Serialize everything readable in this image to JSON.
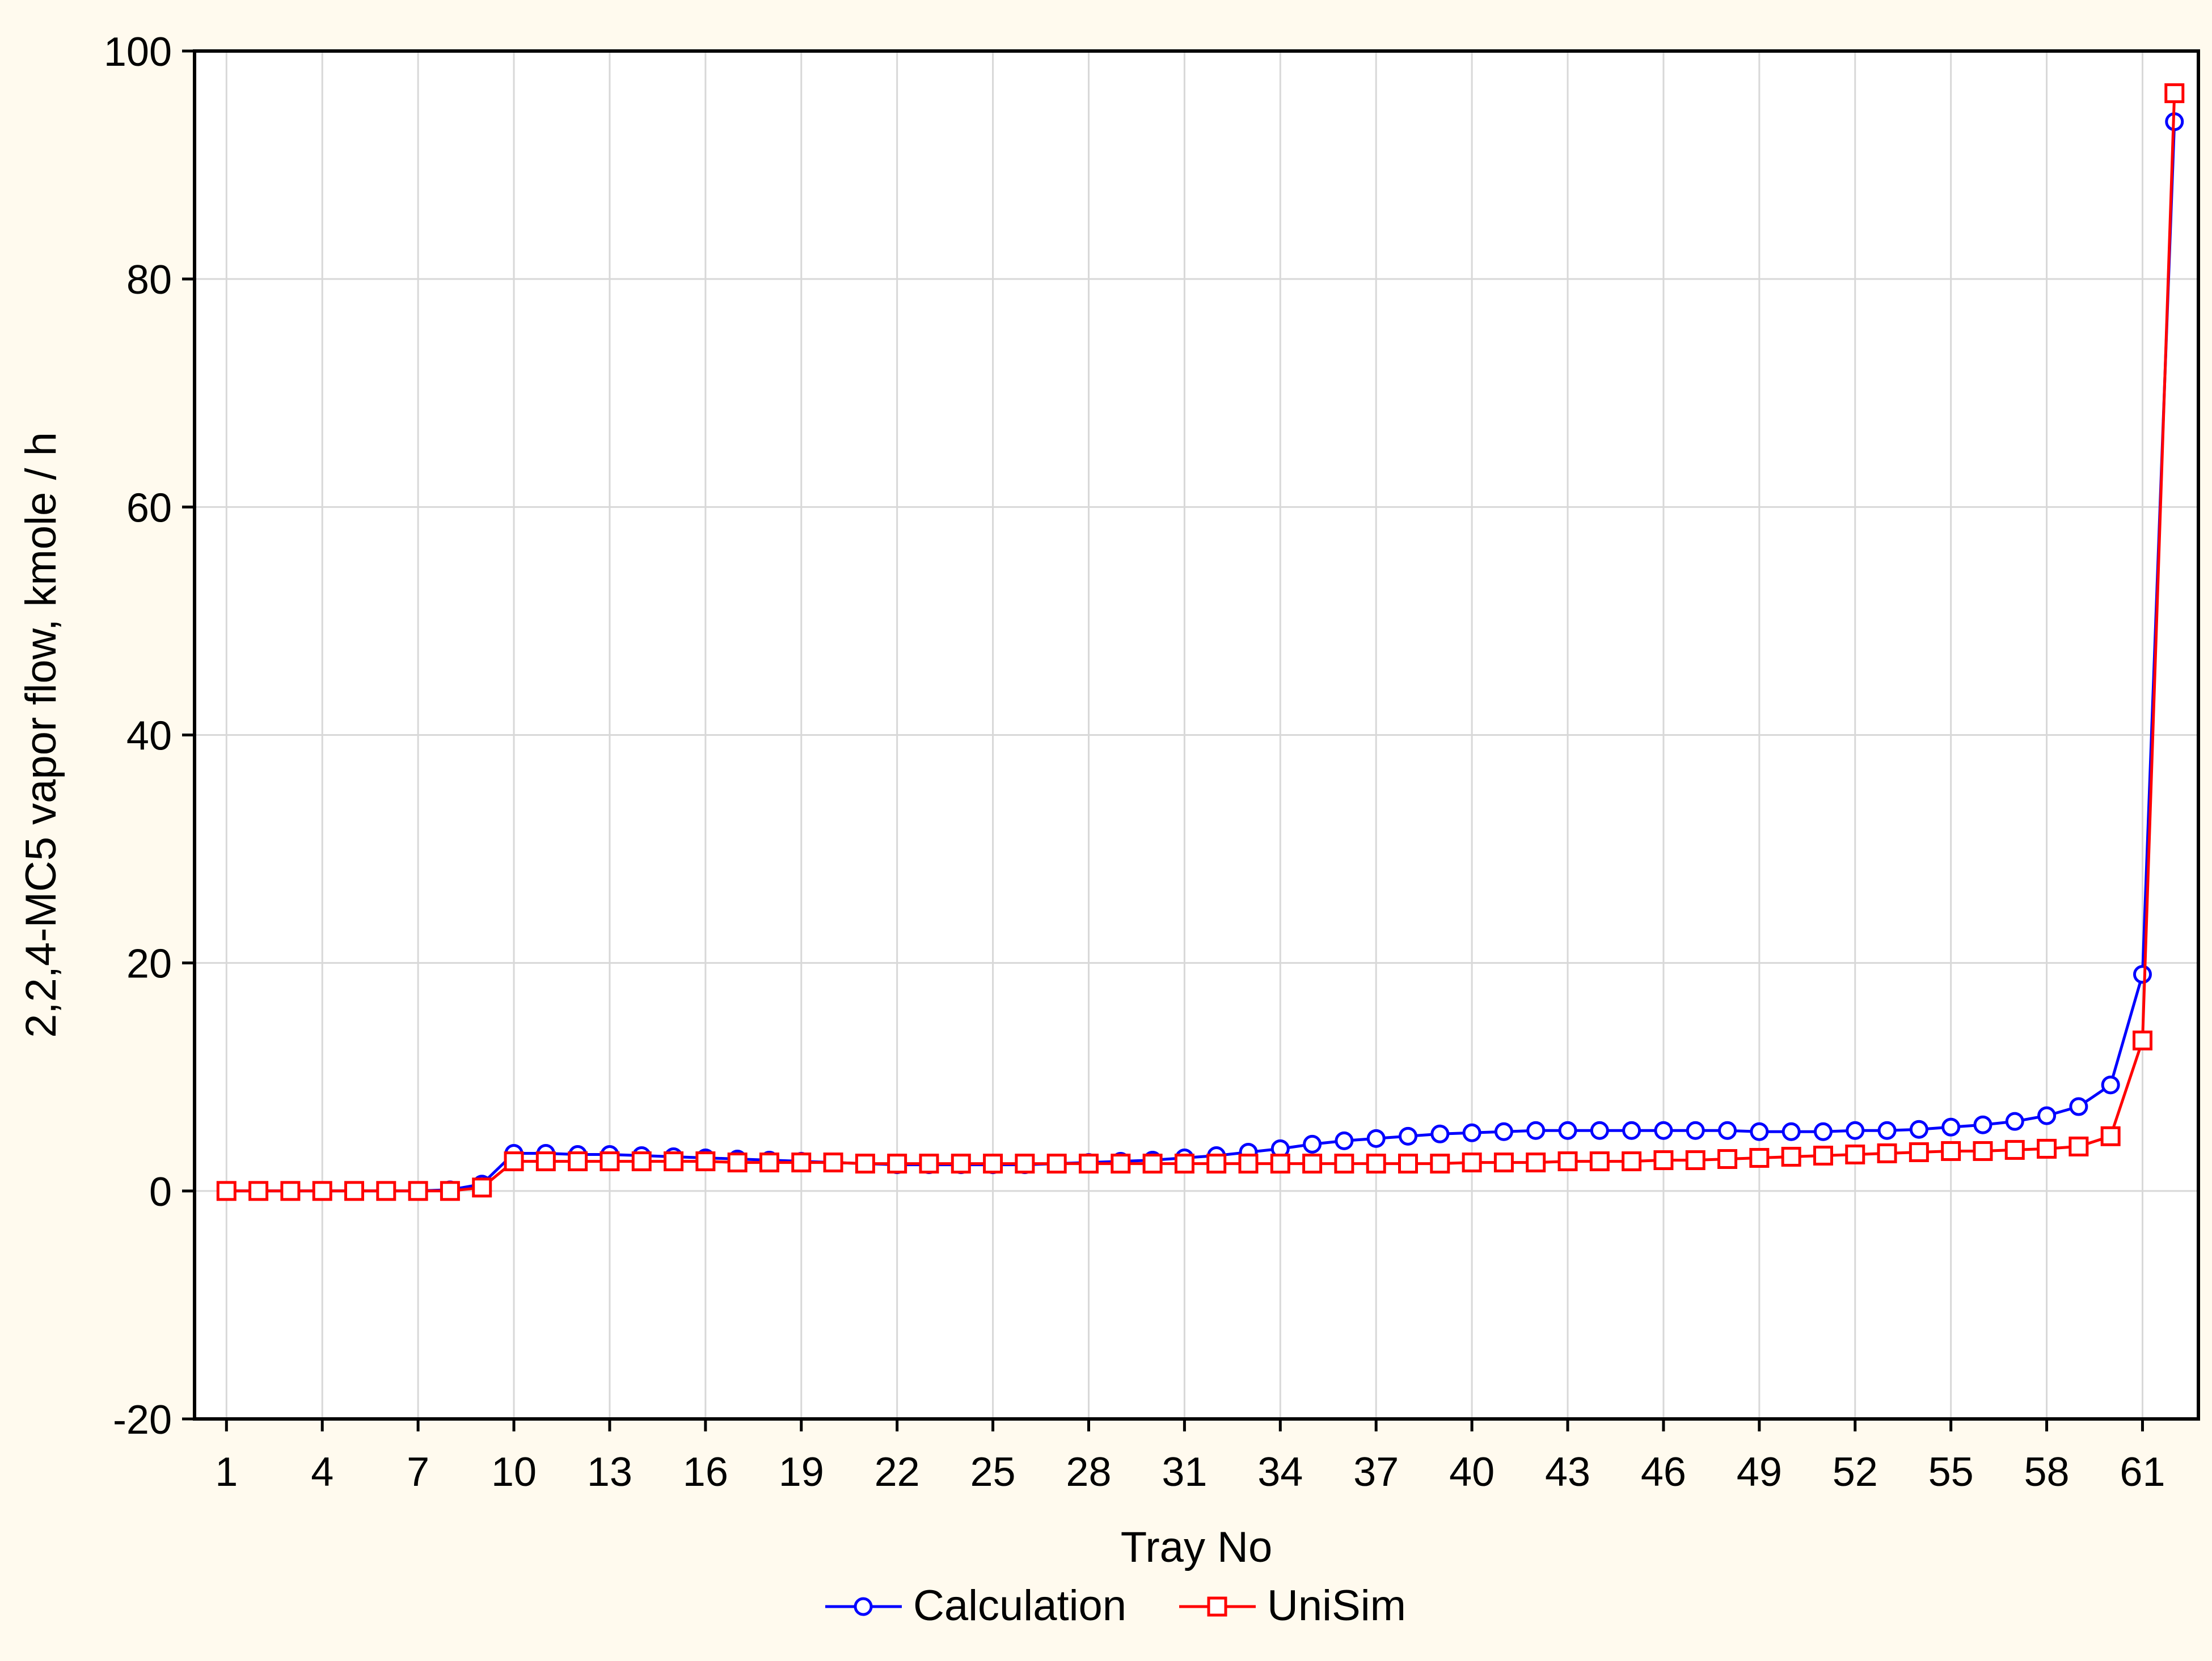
{
  "chart_data": {
    "type": "line",
    "title": "",
    "xlabel": "Tray No",
    "ylabel": "2,2,4-MC5 vapor flow, kmole / h",
    "xlim": [
      0,
      62.75
    ],
    "ylim": [
      -20,
      100
    ],
    "x_ticks": [
      1,
      4,
      7,
      10,
      13,
      16,
      19,
      22,
      25,
      28,
      31,
      34,
      37,
      40,
      43,
      46,
      49,
      52,
      55,
      58,
      61
    ],
    "y_ticks": [
      -20,
      0,
      20,
      40,
      60,
      80,
      100
    ],
    "grid": true,
    "legend_position": "bottom-center",
    "x": [
      1,
      2,
      3,
      4,
      5,
      6,
      7,
      8,
      9,
      10,
      11,
      12,
      13,
      14,
      15,
      16,
      17,
      18,
      19,
      20,
      21,
      22,
      23,
      24,
      25,
      26,
      27,
      28,
      29,
      30,
      31,
      32,
      33,
      34,
      35,
      36,
      37,
      38,
      39,
      40,
      41,
      42,
      43,
      44,
      45,
      46,
      47,
      48,
      49,
      50,
      51,
      52,
      53,
      54,
      55,
      56,
      57,
      58,
      59,
      60,
      61,
      62
    ],
    "series": [
      {
        "name": "Calculation",
        "color": "#0000ff",
        "marker": "circle",
        "values": [
          0,
          0,
          0,
          0,
          0,
          0,
          0,
          0.1,
          0.6,
          3.3,
          3.3,
          3.2,
          3.2,
          3.1,
          3.0,
          2.9,
          2.8,
          2.7,
          2.6,
          2.5,
          2.4,
          2.3,
          2.3,
          2.3,
          2.3,
          2.3,
          2.4,
          2.5,
          2.6,
          2.7,
          2.9,
          3.1,
          3.4,
          3.7,
          4.1,
          4.4,
          4.6,
          4.8,
          5.0,
          5.1,
          5.2,
          5.3,
          5.3,
          5.3,
          5.3,
          5.3,
          5.3,
          5.3,
          5.2,
          5.2,
          5.2,
          5.3,
          5.3,
          5.4,
          5.6,
          5.8,
          6.1,
          6.6,
          7.4,
          9.3,
          19.0,
          93.8
        ]
      },
      {
        "name": "UniSim",
        "color": "#ff0000",
        "marker": "square",
        "values": [
          0,
          0,
          0,
          0,
          0,
          0,
          0,
          0,
          0.3,
          2.6,
          2.6,
          2.6,
          2.6,
          2.6,
          2.6,
          2.6,
          2.5,
          2.5,
          2.5,
          2.5,
          2.4,
          2.4,
          2.4,
          2.4,
          2.4,
          2.4,
          2.4,
          2.4,
          2.4,
          2.4,
          2.4,
          2.4,
          2.4,
          2.4,
          2.4,
          2.4,
          2.4,
          2.4,
          2.4,
          2.5,
          2.5,
          2.5,
          2.6,
          2.6,
          2.6,
          2.7,
          2.7,
          2.8,
          2.9,
          3.0,
          3.1,
          3.2,
          3.3,
          3.4,
          3.5,
          3.5,
          3.6,
          3.7,
          3.9,
          4.8,
          13.2,
          96.3
        ]
      }
    ]
  }
}
